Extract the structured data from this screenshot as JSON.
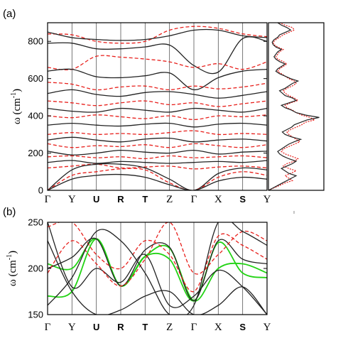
{
  "chart_data": [
    {
      "type": "line",
      "panel_label": "(a)",
      "ylabel_main": "ω (cm",
      "ylabel_sup": "-1",
      "ylabel_close": ")",
      "ylim": [
        0,
        900
      ],
      "yticks": [
        0,
        200,
        400,
        600,
        800
      ],
      "xticks": [
        "Γ",
        "Y",
        "U",
        "R",
        "T",
        "Z",
        "Γ",
        "X",
        "S",
        "Y"
      ],
      "grid": false,
      "series_styles": {
        "black": "solid",
        "red": "dashed"
      },
      "colors": {
        "black": "#222222",
        "red": "#e8201c"
      },
      "series": [
        {
          "style": "black",
          "values": [
            790,
            790,
            760,
            760,
            770,
            780,
            670,
            635,
            815,
            800
          ]
        },
        {
          "style": "red",
          "values": [
            840,
            835,
            800,
            790,
            800,
            860,
            880,
            870,
            840,
            825
          ]
        },
        {
          "style": "black",
          "values": [
            850,
            820,
            810,
            805,
            810,
            830,
            860,
            860,
            830,
            820
          ]
        },
        {
          "style": "red",
          "values": [
            660,
            650,
            720,
            715,
            705,
            690,
            660,
            680,
            650,
            690
          ]
        },
        {
          "style": "black",
          "values": [
            640,
            650,
            610,
            605,
            615,
            630,
            540,
            605,
            640,
            650
          ]
        },
        {
          "style": "red",
          "values": [
            580,
            570,
            540,
            555,
            560,
            540,
            560,
            545,
            555,
            575
          ]
        },
        {
          "style": "black",
          "values": [
            520,
            540,
            515,
            505,
            525,
            530,
            515,
            495,
            510,
            530
          ]
        },
        {
          "style": "red",
          "values": [
            480,
            470,
            455,
            470,
            480,
            460,
            470,
            450,
            465,
            480
          ]
        },
        {
          "style": "black",
          "values": [
            440,
            425,
            420,
            440,
            430,
            420,
            440,
            430,
            420,
            440
          ]
        },
        {
          "style": "red",
          "values": [
            400,
            390,
            405,
            395,
            385,
            400,
            380,
            400,
            395,
            405
          ]
        },
        {
          "style": "black",
          "values": [
            350,
            360,
            350,
            345,
            355,
            360,
            340,
            355,
            360,
            350
          ]
        },
        {
          "style": "red",
          "values": [
            300,
            310,
            300,
            305,
            300,
            310,
            320,
            300,
            305,
            300
          ]
        },
        {
          "style": "black",
          "values": [
            270,
            285,
            270,
            260,
            275,
            280,
            260,
            270,
            275,
            265
          ]
        },
        {
          "style": "red",
          "values": [
            250,
            230,
            240,
            235,
            245,
            230,
            250,
            240,
            230,
            245
          ]
        },
        {
          "style": "black",
          "values": [
            210,
            190,
            200,
            215,
            205,
            200,
            215,
            195,
            205,
            210
          ]
        },
        {
          "style": "red",
          "values": [
            180,
            185,
            175,
            180,
            170,
            185,
            175,
            180,
            185,
            175
          ]
        },
        {
          "style": "black",
          "values": [
            150,
            160,
            145,
            155,
            150,
            145,
            150,
            155,
            150,
            160
          ]
        },
        {
          "style": "red",
          "values": [
            120,
            130,
            140,
            120,
            125,
            130,
            115,
            125,
            130,
            120
          ]
        },
        {
          "style": "black",
          "values": [
            0,
            110,
            140,
            140,
            120,
            60,
            0,
            90,
            120,
            110
          ]
        },
        {
          "style": "red",
          "values": [
            0,
            80,
            100,
            115,
            110,
            40,
            0,
            70,
            100,
            80
          ]
        },
        {
          "style": "black",
          "values": [
            0,
            60,
            80,
            85,
            70,
            30,
            0,
            50,
            70,
            60
          ]
        }
      ]
    },
    {
      "type": "line",
      "panel_label": "(b)",
      "ylabel_main": "ω (cm",
      "ylabel_sup": "-1",
      "ylabel_close": ")",
      "ylim": [
        150,
        250
      ],
      "yticks": [
        150,
        200,
        250
      ],
      "xticks": [
        "Γ",
        "Y",
        "U",
        "R",
        "T",
        "Z",
        "Γ",
        "X",
        "S",
        "Y"
      ],
      "grid": false,
      "colors": {
        "black": "#222222",
        "red": "#e8201c",
        "green": "#22d314"
      },
      "series": [
        {
          "style": "green",
          "values": [
            205,
            200,
            232,
            181,
            213,
            210,
            165,
            228,
            195,
            190
          ]
        },
        {
          "style": "green",
          "values": [
            170,
            175,
            232,
            181,
            213,
            222,
            165,
            200,
            205,
            195
          ]
        },
        {
          "style": "black",
          "values": [
            200,
            212,
            232,
            181,
            220,
            223,
            165,
            230,
            210,
            205
          ]
        },
        {
          "style": "black",
          "values": [
            250,
            180,
            200,
            185,
            215,
            160,
            170,
            198,
            180,
            150
          ]
        },
        {
          "style": "red",
          "values": [
            195,
            230,
            205,
            181,
            210,
            250,
            195,
            215,
            240,
            230
          ]
        },
        {
          "style": "red",
          "values": [
            245,
            250,
            215,
            200,
            230,
            215,
            175,
            235,
            225,
            210
          ]
        },
        {
          "style": "black",
          "values": [
            160,
            190,
            240,
            230,
            195,
            150,
            160,
            250,
            240,
            225
          ]
        },
        {
          "style": "black",
          "values": [
            230,
            175,
            150,
            155,
            170,
            175,
            150,
            160,
            180,
            150
          ]
        }
      ]
    }
  ],
  "dos": {
    "black_values": [
      0,
      5,
      10,
      15,
      20,
      25,
      30,
      22,
      18,
      14,
      20,
      26,
      30,
      22,
      16,
      12,
      10,
      14,
      18,
      22,
      28,
      35,
      25,
      18,
      15,
      20,
      25,
      28,
      35,
      42,
      55,
      40,
      30,
      25,
      18,
      14,
      22,
      30,
      26,
      18,
      15,
      12,
      18,
      22,
      26,
      32,
      24,
      18,
      12,
      8,
      10,
      14,
      18,
      12,
      8,
      6,
      8,
      10,
      14,
      8,
      5,
      4,
      6,
      10,
      12,
      18,
      24,
      20,
      14,
      10
    ],
    "red_values": [
      0,
      6,
      12,
      18,
      26,
      22,
      18,
      24,
      30,
      22,
      16,
      20,
      28,
      32,
      25,
      18,
      14,
      16,
      22,
      28,
      34,
      30,
      26,
      22,
      20,
      24,
      30,
      36,
      40,
      50,
      45,
      36,
      30,
      26,
      20,
      18,
      24,
      32,
      28,
      22,
      18,
      16,
      20,
      26,
      30,
      28,
      22,
      18,
      14,
      10,
      12,
      16,
      20,
      16,
      10,
      8,
      10,
      12,
      16,
      10,
      6,
      5,
      8,
      12,
      16,
      22,
      28,
      26,
      18,
      12
    ]
  }
}
